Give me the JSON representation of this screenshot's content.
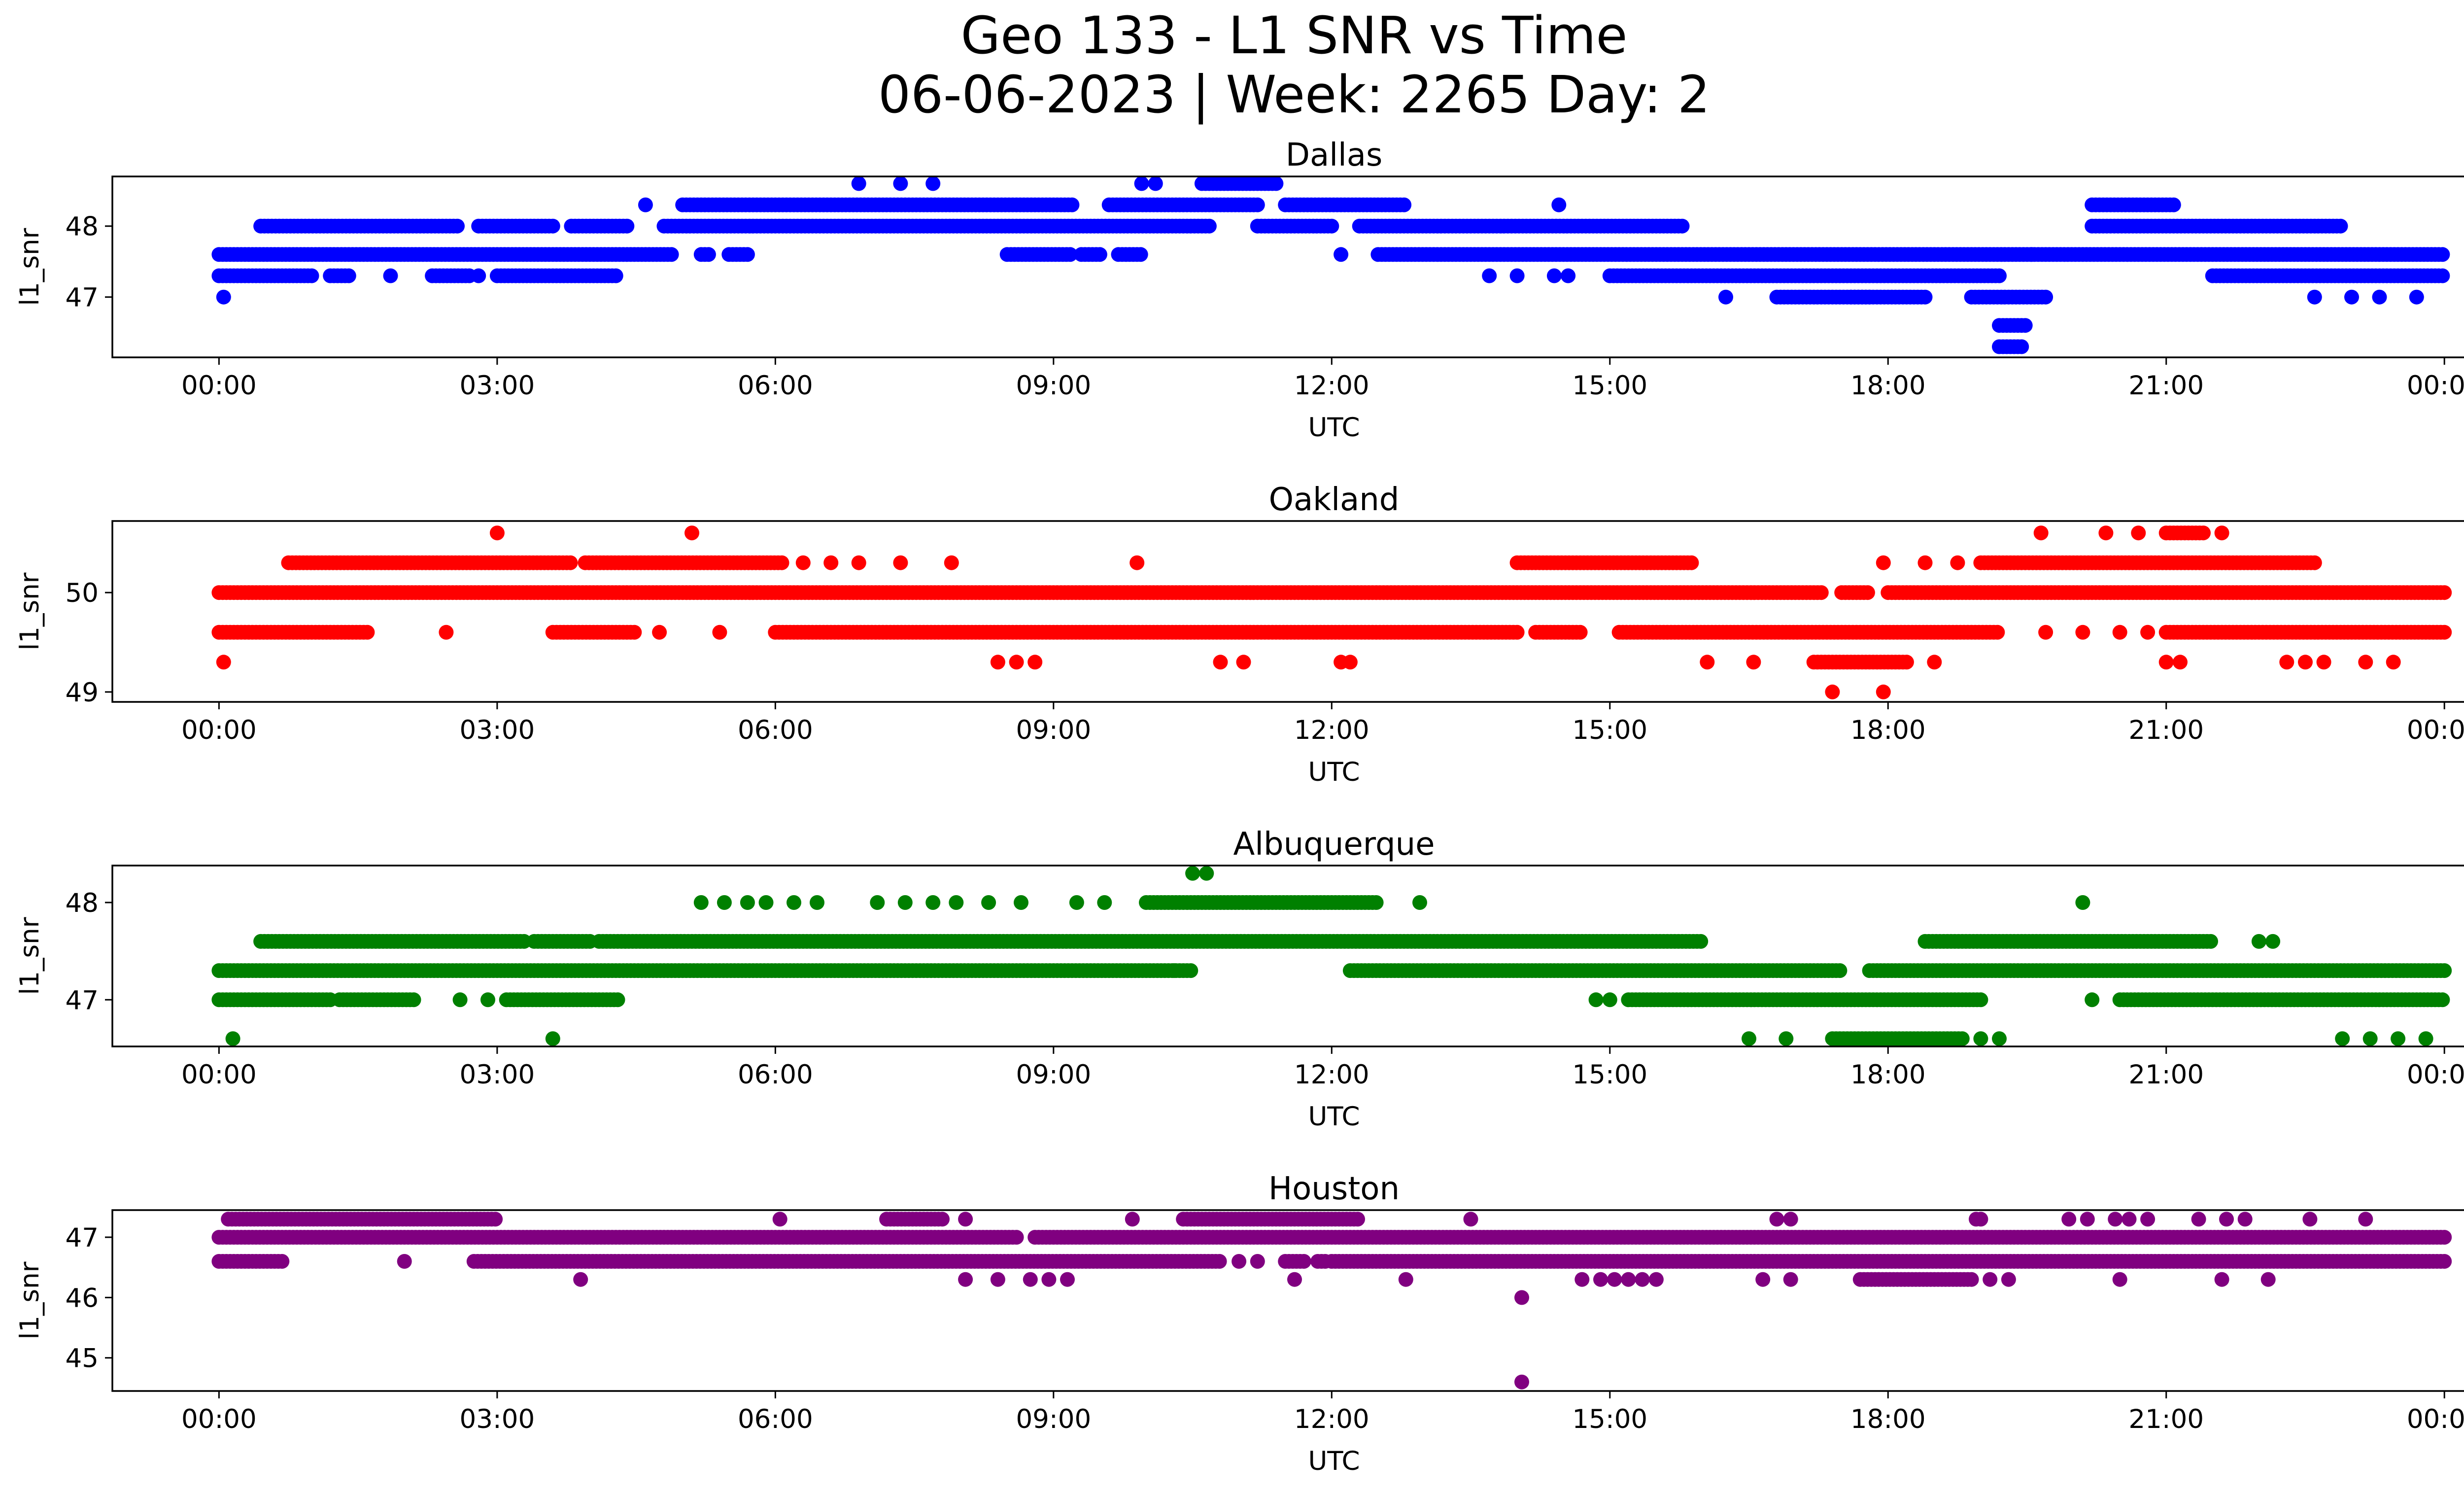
{
  "figure": {
    "title_line1": "Geo 133 - L1 SNR vs Time",
    "title_line2": "06-06-2023 | Week: 2265 Day: 2"
  },
  "chart_data": [
    {
      "type": "scatter",
      "title": "Dallas",
      "xlabel": "UTC",
      "ylabel": "l1_snr",
      "color": "#0000ff",
      "xlim_hours": [
        -1.15,
        25.2
      ],
      "ylim": [
        46.15,
        48.7
      ],
      "xtick_values": [
        0,
        3,
        6,
        9,
        12,
        15,
        18,
        21,
        24
      ],
      "xtick_labels": [
        "00:00",
        "03:00",
        "06:00",
        "09:00",
        "12:00",
        "15:00",
        "18:00",
        "21:00",
        "00:00"
      ],
      "ytick_values": [
        47,
        48
      ],
      "ytick_labels": [
        "47",
        "48"
      ],
      "runs": [
        {
          "y": 47.6,
          "segments": [
            [
              0.0,
              4.9
            ],
            [
              5.2,
              5.3
            ],
            [
              5.5,
              5.7
            ],
            [
              8.5,
              9.2
            ],
            [
              9.3,
              9.5
            ],
            [
              9.7,
              9.95
            ],
            [
              12.5,
              24.0
            ]
          ]
        },
        {
          "y": 47.3,
          "segments": [
            [
              0.0,
              1.0
            ],
            [
              1.2,
              1.4
            ],
            [
              2.3,
              2.7
            ],
            [
              3.0,
              4.3
            ],
            [
              15.0,
              19.2
            ],
            [
              21.5,
              24.0
            ]
          ]
        },
        {
          "y": 48.0,
          "segments": [
            [
              0.45,
              2.6
            ],
            [
              2.8,
              3.6
            ],
            [
              3.8,
              4.4
            ],
            [
              4.8,
              10.7
            ],
            [
              11.2,
              12.0
            ],
            [
              12.3,
              15.8
            ],
            [
              20.2,
              22.9
            ]
          ]
        },
        {
          "y": 48.3,
          "segments": [
            [
              5.0,
              9.2
            ],
            [
              9.6,
              11.2
            ],
            [
              11.5,
              12.8
            ],
            [
              20.2,
              21.1
            ]
          ]
        },
        {
          "y": 47.0,
          "segments": [
            [
              16.8,
              17.8
            ],
            [
              17.6,
              18.4
            ],
            [
              18.9,
              19.7
            ]
          ]
        },
        {
          "y": 48.6,
          "segments": [
            [
              10.6,
              11.4
            ]
          ]
        },
        {
          "y": 46.6,
          "segments": [
            [
              19.2,
              19.5
            ]
          ]
        },
        {
          "y": 46.3,
          "segments": [
            [
              19.2,
              19.45
            ]
          ]
        }
      ],
      "points": [
        {
          "x": 0.05,
          "y": 47.0
        },
        {
          "x": 1.85,
          "y": 47.3
        },
        {
          "x": 2.8,
          "y": 47.3
        },
        {
          "x": 4.6,
          "y": 48.3
        },
        {
          "x": 6.9,
          "y": 48.6
        },
        {
          "x": 7.35,
          "y": 48.6
        },
        {
          "x": 7.7,
          "y": 48.6
        },
        {
          "x": 9.95,
          "y": 48.6
        },
        {
          "x": 10.1,
          "y": 48.6
        },
        {
          "x": 12.1,
          "y": 47.6
        },
        {
          "x": 13.7,
          "y": 47.3
        },
        {
          "x": 14.0,
          "y": 47.3
        },
        {
          "x": 14.45,
          "y": 48.3
        },
        {
          "x": 14.4,
          "y": 47.3
        },
        {
          "x": 14.55,
          "y": 47.3
        },
        {
          "x": 16.25,
          "y": 47.0
        },
        {
          "x": 19.55,
          "y": 47.6
        },
        {
          "x": 22.6,
          "y": 47.0
        },
        {
          "x": 23.0,
          "y": 47.0
        },
        {
          "x": 23.3,
          "y": 47.0
        },
        {
          "x": 23.7,
          "y": 47.0
        }
      ]
    },
    {
      "type": "scatter",
      "title": "Oakland",
      "xlabel": "UTC",
      "ylabel": "l1_snr",
      "color": "#ff0000",
      "xlim_hours": [
        -1.15,
        25.2
      ],
      "ylim": [
        48.9,
        50.72
      ],
      "xtick_values": [
        0,
        3,
        6,
        9,
        12,
        15,
        18,
        21,
        24
      ],
      "xtick_labels": [
        "00:00",
        "03:00",
        "06:00",
        "09:00",
        "12:00",
        "15:00",
        "18:00",
        "21:00",
        "00:00"
      ],
      "ytick_values": [
        49,
        50
      ],
      "ytick_labels": [
        "49",
        "50"
      ],
      "runs": [
        {
          "y": 50.0,
          "segments": [
            [
              0.0,
              17.3
            ],
            [
              17.5,
              17.8
            ],
            [
              18.0,
              24.0
            ]
          ]
        },
        {
          "y": 49.6,
          "segments": [
            [
              0.0,
              1.6
            ],
            [
              3.6,
              4.5
            ],
            [
              6.0,
              14.0
            ],
            [
              14.2,
              14.7
            ],
            [
              15.1,
              19.2
            ],
            [
              21.0,
              24.0
            ]
          ]
        },
        {
          "y": 50.3,
          "segments": [
            [
              0.75,
              3.8
            ],
            [
              3.95,
              6.1
            ],
            [
              14.0,
              15.9
            ],
            [
              19.0,
              22.6
            ]
          ]
        },
        {
          "y": 49.3,
          "segments": [
            [
              17.2,
              18.2
            ]
          ]
        },
        {
          "y": 50.6,
          "segments": [
            [
              21.0,
              21.4
            ]
          ]
        }
      ],
      "points": [
        {
          "x": 0.05,
          "y": 49.3
        },
        {
          "x": 2.45,
          "y": 49.6
        },
        {
          "x": 3.0,
          "y": 50.6
        },
        {
          "x": 5.1,
          "y": 50.6
        },
        {
          "x": 4.75,
          "y": 49.6
        },
        {
          "x": 5.4,
          "y": 49.6
        },
        {
          "x": 6.3,
          "y": 50.3
        },
        {
          "x": 6.6,
          "y": 50.3
        },
        {
          "x": 6.9,
          "y": 50.3
        },
        {
          "x": 7.35,
          "y": 50.3
        },
        {
          "x": 7.9,
          "y": 50.3
        },
        {
          "x": 9.9,
          "y": 50.3
        },
        {
          "x": 8.4,
          "y": 49.3
        },
        {
          "x": 8.6,
          "y": 49.3
        },
        {
          "x": 8.8,
          "y": 49.3
        },
        {
          "x": 10.8,
          "y": 49.3
        },
        {
          "x": 11.05,
          "y": 49.3
        },
        {
          "x": 12.1,
          "y": 49.3
        },
        {
          "x": 12.2,
          "y": 49.3
        },
        {
          "x": 16.05,
          "y": 49.3
        },
        {
          "x": 16.55,
          "y": 49.3
        },
        {
          "x": 18.5,
          "y": 49.3
        },
        {
          "x": 17.4,
          "y": 49.0
        },
        {
          "x": 17.95,
          "y": 49.0
        },
        {
          "x": 17.95,
          "y": 50.3
        },
        {
          "x": 18.4,
          "y": 50.3
        },
        {
          "x": 18.75,
          "y": 50.3
        },
        {
          "x": 19.65,
          "y": 50.6
        },
        {
          "x": 20.35,
          "y": 50.6
        },
        {
          "x": 20.7,
          "y": 50.6
        },
        {
          "x": 21.6,
          "y": 50.6
        },
        {
          "x": 19.7,
          "y": 49.6
        },
        {
          "x": 20.1,
          "y": 49.6
        },
        {
          "x": 20.5,
          "y": 49.6
        },
        {
          "x": 20.8,
          "y": 49.6
        },
        {
          "x": 21.0,
          "y": 49.3
        },
        {
          "x": 21.15,
          "y": 49.3
        },
        {
          "x": 22.3,
          "y": 49.3
        },
        {
          "x": 22.5,
          "y": 49.3
        },
        {
          "x": 22.7,
          "y": 49.3
        },
        {
          "x": 23.15,
          "y": 49.3
        },
        {
          "x": 23.45,
          "y": 49.3
        }
      ]
    },
    {
      "type": "scatter",
      "title": "Albuquerque",
      "xlabel": "UTC",
      "ylabel": "l1_snr",
      "color": "#008000",
      "xlim_hours": [
        -1.15,
        25.2
      ],
      "ylim": [
        46.52,
        48.38
      ],
      "xtick_values": [
        0,
        3,
        6,
        9,
        12,
        15,
        18,
        21,
        24
      ],
      "xtick_labels": [
        "00:00",
        "03:00",
        "06:00",
        "09:00",
        "12:00",
        "15:00",
        "18:00",
        "21:00",
        "00:00"
      ],
      "ytick_values": [
        47,
        48
      ],
      "ytick_labels": [
        "47",
        "48"
      ],
      "runs": [
        {
          "y": 47.3,
          "segments": [
            [
              0.0,
              10.5
            ],
            [
              12.2,
              17.5
            ],
            [
              17.8,
              24.0
            ]
          ]
        },
        {
          "y": 47.6,
          "segments": [
            [
              0.45,
              3.3
            ],
            [
              3.4,
              4.0
            ],
            [
              4.1,
              16.0
            ],
            [
              18.4,
              21.5
            ]
          ]
        },
        {
          "y": 47.0,
          "segments": [
            [
              0.0,
              1.2
            ],
            [
              1.3,
              2.1
            ],
            [
              3.1,
              4.3
            ],
            [
              15.2,
              19.0
            ],
            [
              20.5,
              24.0
            ]
          ]
        },
        {
          "y": 48.0,
          "segments": [
            [
              10.0,
              12.5
            ]
          ]
        },
        {
          "y": 46.6,
          "segments": [
            [
              17.4,
              18.8
            ]
          ]
        }
      ],
      "points": [
        {
          "x": 0.15,
          "y": 46.6
        },
        {
          "x": 3.6,
          "y": 46.6
        },
        {
          "x": 16.5,
          "y": 46.6
        },
        {
          "x": 16.9,
          "y": 46.6
        },
        {
          "x": 19.0,
          "y": 46.6
        },
        {
          "x": 19.2,
          "y": 46.6
        },
        {
          "x": 22.9,
          "y": 46.6
        },
        {
          "x": 23.2,
          "y": 46.6
        },
        {
          "x": 23.5,
          "y": 46.6
        },
        {
          "x": 23.8,
          "y": 46.6
        },
        {
          "x": 2.6,
          "y": 47.0
        },
        {
          "x": 2.9,
          "y": 47.0
        },
        {
          "x": 14.85,
          "y": 47.0
        },
        {
          "x": 15.0,
          "y": 47.0
        },
        {
          "x": 20.2,
          "y": 47.0
        },
        {
          "x": 5.2,
          "y": 48.0
        },
        {
          "x": 5.45,
          "y": 48.0
        },
        {
          "x": 5.7,
          "y": 48.0
        },
        {
          "x": 5.9,
          "y": 48.0
        },
        {
          "x": 6.2,
          "y": 48.0
        },
        {
          "x": 6.45,
          "y": 48.0
        },
        {
          "x": 7.1,
          "y": 48.0
        },
        {
          "x": 7.4,
          "y": 48.0
        },
        {
          "x": 7.7,
          "y": 48.0
        },
        {
          "x": 7.95,
          "y": 48.0
        },
        {
          "x": 8.3,
          "y": 48.0
        },
        {
          "x": 8.65,
          "y": 48.0
        },
        {
          "x": 9.25,
          "y": 48.0
        },
        {
          "x": 9.55,
          "y": 48.0
        },
        {
          "x": 12.95,
          "y": 48.0
        },
        {
          "x": 20.1,
          "y": 48.0
        },
        {
          "x": 10.5,
          "y": 48.3
        },
        {
          "x": 10.65,
          "y": 48.3
        },
        {
          "x": 10.3,
          "y": 47.3
        },
        {
          "x": 22.0,
          "y": 47.6
        },
        {
          "x": 22.15,
          "y": 47.6
        }
      ]
    },
    {
      "type": "scatter",
      "title": "Houston",
      "xlabel": "UTC",
      "ylabel": "l1_snr",
      "color": "#800080",
      "xlim_hours": [
        -1.15,
        25.2
      ],
      "ylim": [
        44.45,
        47.45
      ],
      "xtick_values": [
        0,
        3,
        6,
        9,
        12,
        15,
        18,
        21,
        24
      ],
      "xtick_labels": [
        "00:00",
        "03:00",
        "06:00",
        "09:00",
        "12:00",
        "15:00",
        "18:00",
        "21:00",
        "00:00"
      ],
      "ytick_values": [
        45,
        46,
        47
      ],
      "ytick_labels": [
        "45",
        "46",
        "47"
      ],
      "runs": [
        {
          "y": 47.0,
          "segments": [
            [
              0.0,
              8.6
            ],
            [
              8.8,
              24.0
            ]
          ]
        },
        {
          "y": 46.6,
          "segments": [
            [
              0.0,
              0.7
            ],
            [
              2.75,
              10.8
            ],
            [
              11.5,
              11.7
            ],
            [
              11.85,
              11.95
            ],
            [
              12.0,
              24.0
            ]
          ]
        },
        {
          "y": 47.3,
          "segments": [
            [
              0.1,
              3.0
            ],
            [
              7.2,
              7.8
            ],
            [
              10.4,
              12.3
            ]
          ]
        },
        {
          "y": 46.3,
          "segments": [
            [
              17.7,
              18.9
            ]
          ]
        }
      ],
      "points": [
        {
          "x": 2.0,
          "y": 46.6
        },
        {
          "x": 11.0,
          "y": 46.6
        },
        {
          "x": 11.2,
          "y": 46.6
        },
        {
          "x": 6.05,
          "y": 47.3
        },
        {
          "x": 8.05,
          "y": 47.3
        },
        {
          "x": 9.85,
          "y": 47.3
        },
        {
          "x": 13.5,
          "y": 47.3
        },
        {
          "x": 16.8,
          "y": 47.3
        },
        {
          "x": 16.95,
          "y": 47.3
        },
        {
          "x": 18.95,
          "y": 47.3
        },
        {
          "x": 19.0,
          "y": 47.3
        },
        {
          "x": 19.95,
          "y": 47.3
        },
        {
          "x": 20.15,
          "y": 47.3
        },
        {
          "x": 20.45,
          "y": 47.3
        },
        {
          "x": 20.6,
          "y": 47.3
        },
        {
          "x": 20.8,
          "y": 47.3
        },
        {
          "x": 21.35,
          "y": 47.3
        },
        {
          "x": 21.65,
          "y": 47.3
        },
        {
          "x": 21.85,
          "y": 47.3
        },
        {
          "x": 22.55,
          "y": 47.3
        },
        {
          "x": 23.15,
          "y": 47.3
        },
        {
          "x": 3.9,
          "y": 46.3
        },
        {
          "x": 8.05,
          "y": 46.3
        },
        {
          "x": 8.4,
          "y": 46.3
        },
        {
          "x": 8.75,
          "y": 46.3
        },
        {
          "x": 8.95,
          "y": 46.3
        },
        {
          "x": 9.15,
          "y": 46.3
        },
        {
          "x": 11.6,
          "y": 46.3
        },
        {
          "x": 12.8,
          "y": 46.3
        },
        {
          "x": 14.7,
          "y": 46.3
        },
        {
          "x": 14.9,
          "y": 46.3
        },
        {
          "x": 15.05,
          "y": 46.3
        },
        {
          "x": 15.2,
          "y": 46.3
        },
        {
          "x": 15.35,
          "y": 46.3
        },
        {
          "x": 15.5,
          "y": 46.3
        },
        {
          "x": 16.65,
          "y": 46.3
        },
        {
          "x": 16.95,
          "y": 46.3
        },
        {
          "x": 19.1,
          "y": 46.3
        },
        {
          "x": 19.3,
          "y": 46.3
        },
        {
          "x": 20.5,
          "y": 46.3
        },
        {
          "x": 21.6,
          "y": 46.3
        },
        {
          "x": 22.1,
          "y": 46.3
        },
        {
          "x": 14.05,
          "y": 46.0
        },
        {
          "x": 14.05,
          "y": 44.6
        }
      ]
    }
  ]
}
